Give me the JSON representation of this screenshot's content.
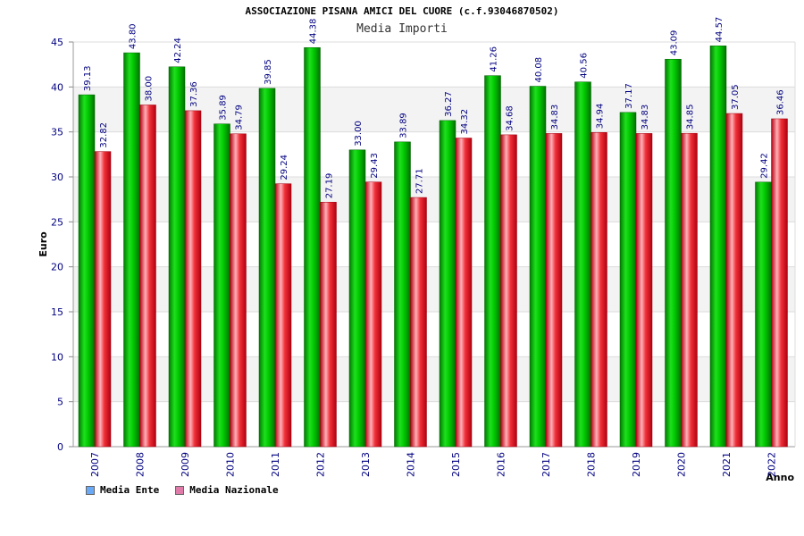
{
  "chart_data": {
    "type": "bar",
    "title": "ASSOCIAZIONE PISANA AMICI DEL CUORE (c.f.93046870502)",
    "subtitle": "Media Importi",
    "xlabel": "Anno",
    "ylabel": "Euro",
    "ylim": [
      0,
      45
    ],
    "yticks": [
      0,
      5,
      10,
      15,
      20,
      25,
      30,
      35,
      40,
      45
    ],
    "categories": [
      "2007",
      "2008",
      "2009",
      "2010",
      "2011",
      "2012",
      "2013",
      "2014",
      "2015",
      "2016",
      "2017",
      "2018",
      "2019",
      "2020",
      "2021",
      "2022"
    ],
    "series": [
      {
        "name": "Media Ente",
        "color": "#00c000",
        "legend_color": "#6aa9f5",
        "values": [
          39.13,
          43.8,
          42.24,
          35.89,
          39.85,
          44.38,
          33.0,
          33.89,
          36.27,
          41.26,
          40.08,
          40.56,
          37.17,
          43.09,
          44.57,
          29.42
        ],
        "labels": [
          "39.13",
          "43.80",
          "42.24",
          "35.89",
          "39.85",
          "44.38",
          "33.00",
          "33.89",
          "36.27",
          "41.26",
          "40.08",
          "40.56",
          "37.17",
          "43.09",
          "44.57",
          "29.42"
        ]
      },
      {
        "name": "Media Nazionale",
        "color": "#e8202a",
        "legend_color": "#e07aa8",
        "values": [
          32.82,
          38.0,
          37.36,
          34.79,
          29.24,
          27.19,
          29.43,
          27.71,
          34.32,
          34.68,
          34.83,
          34.94,
          34.83,
          34.85,
          37.05,
          36.46
        ],
        "labels": [
          "32.82",
          "38.00",
          "37.36",
          "34.79",
          "29.24",
          "27.19",
          "29.43",
          "27.71",
          "34.32",
          "34.68",
          "34.83",
          "34.94",
          "34.83",
          "34.85",
          "37.05",
          "36.46"
        ]
      }
    ],
    "grid": true,
    "legend_position": "bottom-left"
  }
}
